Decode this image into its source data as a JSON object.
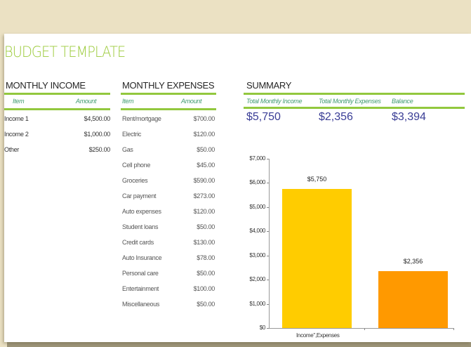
{
  "title": "BUDGET TEMPLATE",
  "colors": {
    "accent_green": "#92c83e",
    "title_green": "#9ccb3b",
    "column_header": "#3d9a6e",
    "summary_value": "#3a3d96",
    "income_bar": "#ffcc00",
    "expense_bar": "#ff9900",
    "background": "#ebe1c3"
  },
  "income": {
    "title": "MONTHLY INCOME",
    "col_item": "Item",
    "col_amount": "Amount",
    "rows": [
      {
        "item": "Income 1",
        "amount": "$4,500.00"
      },
      {
        "item": "Income 2",
        "amount": "$1,000.00"
      },
      {
        "item": "Other",
        "amount": "$250.00"
      }
    ]
  },
  "expenses": {
    "title": "MONTHLY EXPENSES",
    "col_item": "Item",
    "col_amount": "Amount",
    "rows": [
      {
        "item": "Rent/mortgage",
        "amount": "$700.00"
      },
      {
        "item": "Electric",
        "amount": "$120.00"
      },
      {
        "item": "Gas",
        "amount": "$50.00"
      },
      {
        "item": "Cell phone",
        "amount": "$45.00"
      },
      {
        "item": "Groceries",
        "amount": "$590.00"
      },
      {
        "item": "Car payment",
        "amount": "$273.00"
      },
      {
        "item": "Auto expenses",
        "amount": "$120.00"
      },
      {
        "item": "Student loans",
        "amount": "$50.00"
      },
      {
        "item": "Credit cards",
        "amount": "$130.00"
      },
      {
        "item": "Auto Insurance",
        "amount": "$78.00"
      },
      {
        "item": "Personal care",
        "amount": "$50.00"
      },
      {
        "item": "Entertainment",
        "amount": "$100.00"
      },
      {
        "item": "Miscellaneous",
        "amount": "$50.00"
      }
    ]
  },
  "summary": {
    "title": "SUMMARY",
    "col_income": "Total Monthly Income",
    "col_expenses": "Total Monthly Expenses",
    "col_balance": "Balance",
    "income_value": "$5,750",
    "expenses_value": "$2,356",
    "balance_value": "$3,394"
  },
  "chart_data": {
    "type": "bar",
    "title": "",
    "categories": [
      "Income",
      "Expenses"
    ],
    "values": [
      5750,
      2356
    ],
    "data_labels": [
      "$5,750",
      "$2,356"
    ],
    "colors": [
      "#ffcc00",
      "#ff9900"
    ],
    "xlabel": "Income\",Expenses",
    "ylabel": "",
    "ylim": [
      0,
      7000
    ],
    "yticks": [
      "$0",
      "$1,000",
      "$2,000",
      "$3,000",
      "$4,000",
      "$5,000",
      "$6,000",
      "$7,000"
    ],
    "grid": false,
    "legend": "none"
  }
}
